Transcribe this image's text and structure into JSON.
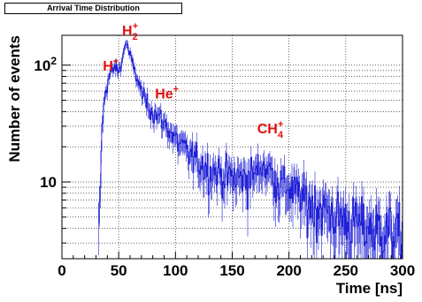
{
  "chart_data": {
    "type": "line",
    "title": "Arrival Time Distribution",
    "xlabel": "Time [ns]",
    "ylabel": "Number of events",
    "xlim": [
      0,
      300
    ],
    "ylim": [
      2.2,
      180
    ],
    "yscale": "log",
    "grid": true,
    "xticks": [
      0,
      50,
      100,
      150,
      200,
      250,
      300
    ],
    "yticks": [
      {
        "value": 10,
        "base": "10",
        "exp": ""
      },
      {
        "value": 100,
        "base": "10",
        "exp": "2"
      }
    ],
    "series_color": "#1f1fd6",
    "annotation_color": "#e01010",
    "annotations": [
      {
        "base": "H",
        "sub": "",
        "sup": "+",
        "x": 36,
        "y": 90
      },
      {
        "base": "H",
        "sub": "2",
        "sup": "+",
        "x": 53,
        "y": 180
      },
      {
        "base": "He",
        "sub": "",
        "sup": "+",
        "x": 82,
        "y": 52
      },
      {
        "base": "CH",
        "sub": "4",
        "sup": "+",
        "x": 172,
        "y": 26
      }
    ],
    "peaks": [
      {
        "x": 32,
        "y": 3
      },
      {
        "x": 35,
        "y": 30
      },
      {
        "x": 38,
        "y": 60
      },
      {
        "x": 42,
        "y": 85
      },
      {
        "x": 46,
        "y": 95
      },
      {
        "x": 50,
        "y": 90
      },
      {
        "x": 53,
        "y": 115
      },
      {
        "x": 56,
        "y": 160
      },
      {
        "x": 59,
        "y": 125
      },
      {
        "x": 63,
        "y": 95
      },
      {
        "x": 67,
        "y": 70
      },
      {
        "x": 72,
        "y": 52
      },
      {
        "x": 78,
        "y": 42
      },
      {
        "x": 85,
        "y": 36
      },
      {
        "x": 92,
        "y": 30
      },
      {
        "x": 100,
        "y": 23
      },
      {
        "x": 110,
        "y": 18
      },
      {
        "x": 120,
        "y": 15
      },
      {
        "x": 130,
        "y": 13
      },
      {
        "x": 140,
        "y": 12
      },
      {
        "x": 150,
        "y": 11
      },
      {
        "x": 160,
        "y": 11
      },
      {
        "x": 170,
        "y": 12
      },
      {
        "x": 176,
        "y": 14
      },
      {
        "x": 182,
        "y": 13
      },
      {
        "x": 190,
        "y": 10
      },
      {
        "x": 200,
        "y": 9
      },
      {
        "x": 215,
        "y": 7
      },
      {
        "x": 230,
        "y": 6
      },
      {
        "x": 245,
        "y": 5
      },
      {
        "x": 260,
        "y": 4.5
      },
      {
        "x": 275,
        "y": 4
      },
      {
        "x": 290,
        "y": 4
      },
      {
        "x": 298,
        "y": 3.5
      }
    ]
  }
}
